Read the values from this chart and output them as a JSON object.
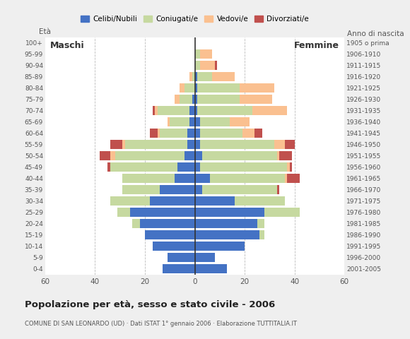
{
  "age_groups": [
    "0-4",
    "5-9",
    "10-14",
    "15-19",
    "20-24",
    "25-29",
    "30-34",
    "35-39",
    "40-44",
    "45-49",
    "50-54",
    "55-59",
    "60-64",
    "65-69",
    "70-74",
    "75-79",
    "80-84",
    "85-89",
    "90-94",
    "95-99",
    "100+"
  ],
  "birth_years": [
    "2001-2005",
    "1996-2000",
    "1991-1995",
    "1986-1990",
    "1981-1985",
    "1976-1980",
    "1971-1975",
    "1966-1970",
    "1961-1965",
    "1956-1960",
    "1951-1955",
    "1946-1950",
    "1941-1945",
    "1936-1940",
    "1931-1935",
    "1926-1930",
    "1921-1925",
    "1916-1920",
    "1911-1915",
    "1906-1910",
    "1905 o prima"
  ],
  "colors": {
    "celibi": "#4472C4",
    "coniugati": "#C6D9A0",
    "vedovi": "#FAC090",
    "divorziati": "#C0504D"
  },
  "males": {
    "celibi": [
      13,
      11,
      17,
      20,
      22,
      26,
      18,
      14,
      8,
      7,
      4,
      3,
      3,
      2,
      2,
      1,
      0,
      0,
      0,
      0,
      0
    ],
    "coniugati": [
      0,
      0,
      0,
      0,
      3,
      5,
      16,
      15,
      21,
      27,
      28,
      25,
      11,
      8,
      13,
      5,
      4,
      1,
      0,
      0,
      0
    ],
    "vedovi": [
      0,
      0,
      0,
      0,
      0,
      0,
      0,
      0,
      0,
      0,
      2,
      1,
      1,
      1,
      1,
      2,
      2,
      1,
      0,
      0,
      0
    ],
    "divorziati": [
      0,
      0,
      0,
      0,
      0,
      0,
      0,
      0,
      0,
      1,
      4,
      5,
      3,
      0,
      1,
      0,
      0,
      0,
      0,
      0,
      0
    ]
  },
  "females": {
    "celibi": [
      13,
      8,
      20,
      26,
      25,
      28,
      16,
      3,
      6,
      2,
      3,
      2,
      2,
      2,
      1,
      1,
      1,
      1,
      0,
      0,
      0
    ],
    "coniugati": [
      0,
      0,
      0,
      2,
      3,
      14,
      20,
      30,
      30,
      35,
      30,
      30,
      17,
      12,
      22,
      17,
      17,
      6,
      2,
      2,
      0
    ],
    "vedovi": [
      0,
      0,
      0,
      0,
      0,
      0,
      0,
      0,
      1,
      1,
      1,
      4,
      5,
      8,
      14,
      13,
      14,
      9,
      6,
      5,
      0
    ],
    "divorziati": [
      0,
      0,
      0,
      0,
      0,
      0,
      0,
      1,
      5,
      1,
      5,
      4,
      3,
      0,
      0,
      0,
      0,
      0,
      1,
      0,
      0
    ]
  },
  "title": "Popolazione per età, sesso e stato civile - 2006",
  "subtitle": "COMUNE DI SAN LEONARDO (UD) · Dati ISTAT 1° gennaio 2006 · Elaborazione TUTTITALIA.IT",
  "xlabel_left": "Maschi",
  "xlabel_right": "Femmine",
  "ylabel_left": "À",
  "ylabel_right": "Anno di nascita",
  "xlim": 60,
  "bg_color": "#EFEFEF",
  "plot_bg": "#FFFFFF"
}
